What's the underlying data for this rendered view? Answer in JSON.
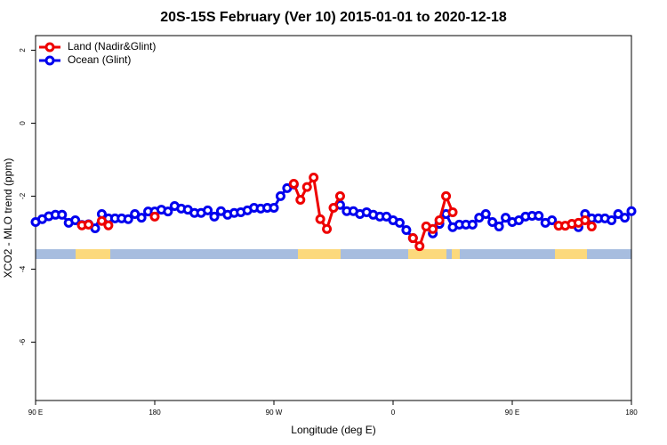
{
  "chart_data": {
    "type": "line",
    "title": "20S-15S February (Ver 10)   2015-01-01 to 2020-12-18",
    "xlabel": "Longitude (deg E)",
    "ylabel": "XCO2 - MLO trend (ppm)",
    "x": [
      90,
      95,
      100,
      105,
      110,
      115,
      120,
      125,
      130,
      135,
      140,
      145,
      150,
      155,
      160,
      165,
      170,
      175,
      180,
      185,
      190,
      195,
      200,
      205,
      210,
      215,
      220,
      225,
      230,
      235,
      240,
      245,
      250,
      255,
      260,
      265,
      270,
      275,
      280,
      285,
      290,
      295,
      300,
      305,
      310,
      315,
      320,
      325,
      330,
      335,
      340,
      345,
      350,
      355,
      360,
      365,
      370,
      375,
      380,
      385,
      390,
      395,
      400,
      405,
      410,
      415,
      420,
      425,
      430,
      435,
      440,
      445,
      450,
      455,
      460,
      465,
      470,
      475,
      480,
      485,
      490,
      495,
      500,
      505,
      510,
      515,
      520,
      525,
      530,
      535,
      540
    ],
    "xlim": [
      90,
      540
    ],
    "xticks": [
      {
        "value": 90,
        "label": "90 E"
      },
      180,
      {
        "value": 270,
        "label": "90 W"
      },
      {
        "value": 360,
        "label": "0"
      },
      {
        "value": 450,
        "label": "90 E"
      },
      {
        "value": 540,
        "label": "180"
      }
    ],
    "ylim": [
      -7.6,
      2.4
    ],
    "yticks": [
      -6,
      -4,
      -2,
      0,
      2
    ],
    "legend": "upper left",
    "series": [
      {
        "name": "Ocean (Glint)",
        "color": "#0000ee",
        "values": [
          -2.71,
          -2.63,
          -2.55,
          -2.51,
          -2.51,
          -2.73,
          -2.66,
          -2.79,
          -2.77,
          -2.88,
          -2.49,
          -2.61,
          -2.61,
          -2.61,
          -2.63,
          -2.49,
          -2.59,
          -2.42,
          -2.42,
          -2.37,
          -2.42,
          -2.27,
          -2.34,
          -2.37,
          -2.46,
          -2.46,
          -2.39,
          -2.56,
          -2.41,
          -2.51,
          -2.46,
          -2.44,
          -2.39,
          -2.32,
          -2.34,
          -2.32,
          -2.32,
          -2.0,
          -1.78,
          -1.68,
          null,
          null,
          null,
          null,
          null,
          null,
          -2.24,
          -2.41,
          -2.41,
          -2.49,
          -2.44,
          -2.51,
          -2.56,
          -2.56,
          -2.66,
          -2.73,
          -2.93,
          -3.15,
          null,
          null,
          -3.02,
          -2.76,
          -2.49,
          -2.85,
          -2.78,
          -2.78,
          -2.78,
          -2.59,
          -2.49,
          -2.71,
          -2.83,
          -2.59,
          -2.71,
          -2.66,
          -2.56,
          -2.54,
          -2.54,
          -2.73,
          -2.66,
          null,
          null,
          null,
          -2.85,
          -2.49,
          -2.61,
          -2.61,
          -2.61,
          -2.66,
          -2.49,
          -2.59,
          -2.41
        ]
      },
      {
        "name": "Land (Nadir&Glint)",
        "color": "#ee0000",
        "values": [
          null,
          null,
          null,
          null,
          null,
          null,
          null,
          -2.8,
          -2.78,
          null,
          -2.68,
          -2.8,
          null,
          null,
          null,
          null,
          null,
          null,
          -2.56,
          null,
          null,
          null,
          null,
          null,
          null,
          null,
          null,
          null,
          null,
          null,
          null,
          null,
          null,
          null,
          null,
          null,
          null,
          null,
          null,
          -1.66,
          -2.1,
          -1.75,
          -1.49,
          -2.63,
          -2.9,
          -2.32,
          -2.0,
          null,
          null,
          null,
          null,
          null,
          null,
          null,
          null,
          null,
          null,
          -3.15,
          -3.37,
          -2.83,
          -2.9,
          -2.66,
          -2.0,
          -2.44,
          null,
          null,
          null,
          null,
          null,
          null,
          null,
          null,
          null,
          null,
          null,
          null,
          null,
          null,
          null,
          -2.81,
          -2.81,
          -2.76,
          -2.73,
          -2.66,
          -2.83,
          null,
          null,
          null,
          null,
          null,
          null
        ]
      }
    ]
  }
}
